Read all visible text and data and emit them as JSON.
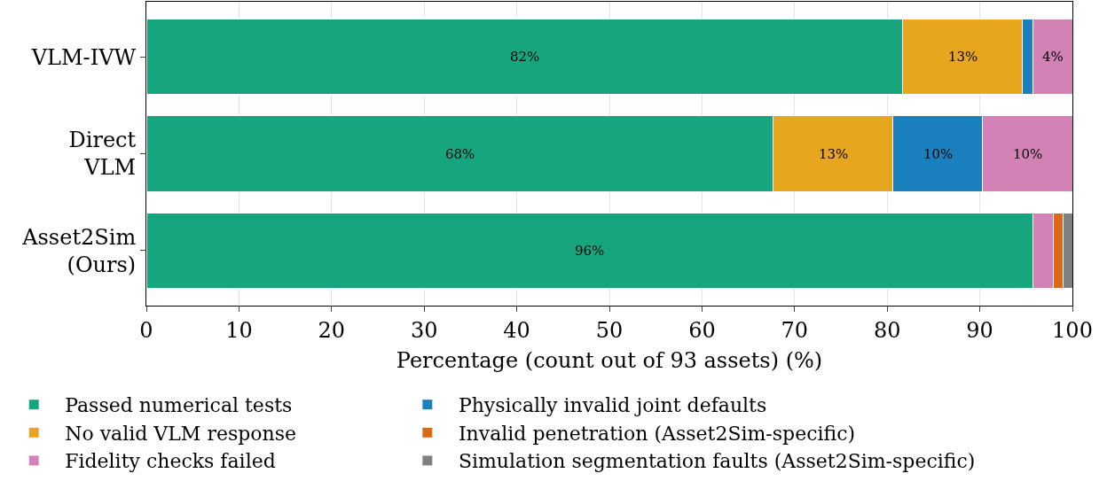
{
  "chart_data": {
    "type": "bar",
    "orientation": "horizontal",
    "stacked": true,
    "categories": [
      "VLM-IVW",
      "Direct\nVLM",
      "Asset2Sim\n(Ours)"
    ],
    "xlabel": "Percentage (count out of 93 assets) (%)",
    "xlim": [
      0,
      100
    ],
    "xticks": [
      0,
      10,
      20,
      30,
      40,
      50,
      60,
      70,
      80,
      90,
      100
    ],
    "grid": "x",
    "legend": "bottom",
    "series": [
      {
        "name": "Passed numerical tests",
        "color": "#17a57f",
        "values": [
          81.7,
          67.7,
          95.7
        ],
        "value_labels": [
          "82%",
          "68%",
          "96%"
        ]
      },
      {
        "name": "No valid VLM response",
        "color": "#e6a71e",
        "values": [
          12.9,
          12.9,
          null
        ],
        "value_labels": [
          "13%",
          "13%",
          null
        ]
      },
      {
        "name": "Physically invalid joint defaults",
        "color": "#1a80bd",
        "values": [
          1.1,
          9.7,
          null
        ],
        "value_labels": [
          null,
          "10%",
          null
        ]
      },
      {
        "name": "Fidelity checks failed",
        "color": "#d282b4",
        "values": [
          4.3,
          9.7,
          2.2
        ],
        "value_labels": [
          "4%",
          "10%",
          null
        ]
      },
      {
        "name": "Invalid penetration (Asset2Sim-specific)",
        "color": "#d8681a",
        "values": [
          null,
          null,
          1.1
        ],
        "value_labels": [
          null,
          null,
          null
        ]
      },
      {
        "name": "Simulation segmentation faults (Asset2Sim-specific)",
        "color": "#808080",
        "values": [
          null,
          null,
          1.1
        ],
        "value_labels": [
          null,
          null,
          null
        ]
      }
    ]
  }
}
